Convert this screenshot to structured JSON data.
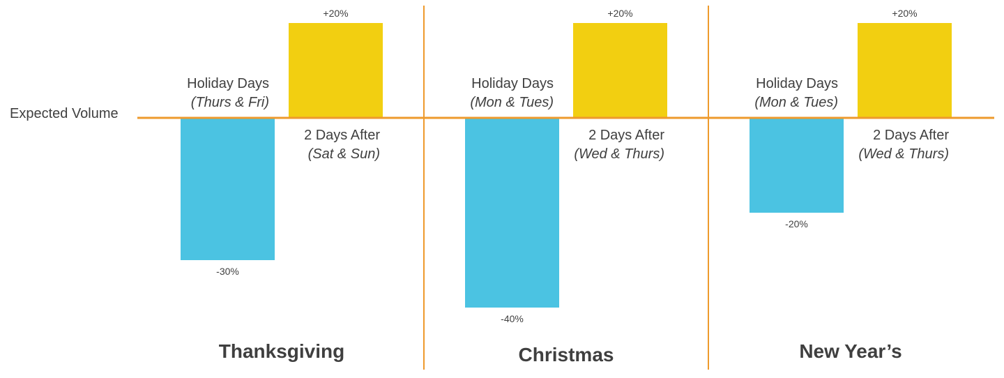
{
  "colors": {
    "negative": "#4bc3e2",
    "positive": "#f2cf11",
    "axis": "#ee9a2c",
    "text": "#3f3f3f"
  },
  "baseline_label": "Expected Volume",
  "chart_data": [
    {
      "type": "bar",
      "title": "Thanksgiving",
      "categories": [
        "Holiday Days (Thurs & Fri)",
        "2 Days After (Sat & Sun)"
      ],
      "category_labels": [
        {
          "main": "Holiday Days",
          "sub": "(Thurs & Fri)"
        },
        {
          "main": "2 Days After",
          "sub": "(Sat & Sun)"
        }
      ],
      "values": [
        -30,
        20
      ],
      "value_labels": [
        "-30%",
        "+20%"
      ],
      "ylabel": "",
      "ylim": [
        -40,
        20
      ],
      "baseline_label": "Expected Volume"
    },
    {
      "type": "bar",
      "title": "Christmas",
      "categories": [
        "Holiday Days (Mon & Tues)",
        "2 Days After (Wed & Thurs)"
      ],
      "category_labels": [
        {
          "main": "Holiday Days",
          "sub": "(Mon & Tues)"
        },
        {
          "main": "2 Days After",
          "sub": "(Wed & Thurs)"
        }
      ],
      "values": [
        -40,
        20
      ],
      "value_labels": [
        "-40%",
        "+20%"
      ],
      "ylabel": "",
      "ylim": [
        -40,
        20
      ],
      "baseline_label": "Expected Volume"
    },
    {
      "type": "bar",
      "title": "New Year’s",
      "categories": [
        "Holiday Days (Mon & Tues)",
        "2 Days After (Wed & Thurs)"
      ],
      "category_labels": [
        {
          "main": "Holiday Days",
          "sub": "(Mon & Tues)"
        },
        {
          "main": "2 Days After",
          "sub": "(Wed & Thurs)"
        }
      ],
      "values": [
        -20,
        20
      ],
      "value_labels": [
        "-20%",
        "+20%"
      ],
      "ylabel": "",
      "ylim": [
        -40,
        20
      ],
      "baseline_label": "Expected Volume"
    }
  ]
}
